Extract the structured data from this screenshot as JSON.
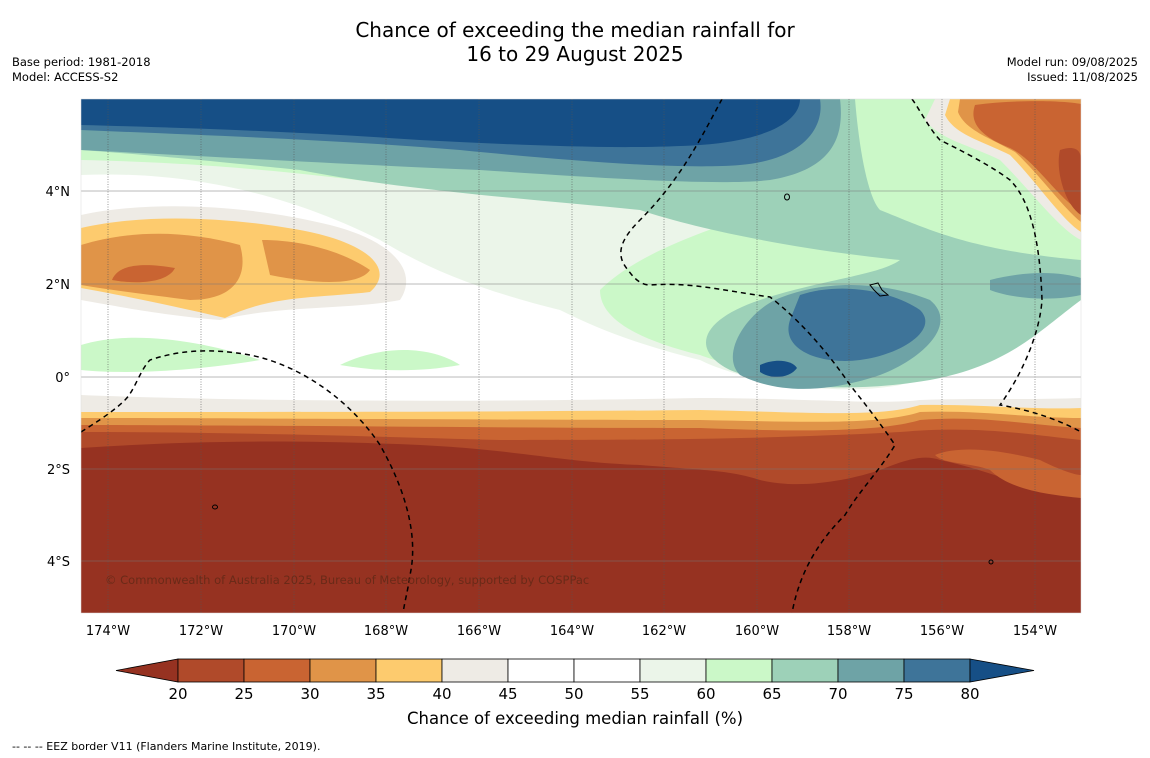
{
  "title_line1": "Chance of exceeding the median rainfall for",
  "title_line2": "16 to 29 August 2025",
  "base_period": "Base period: 1981-2018",
  "model": "Model: ACCESS-S2",
  "model_run": "Model run: 09/08/2025",
  "issued": "Issued: 11/08/2025",
  "copyright": "© Commonwealth of Australia 2025, Bureau of Meteorology, supported by COSPPac",
  "lat_labels": [
    "4°N",
    "2°N",
    "0°",
    "2°S",
    "4°S"
  ],
  "lon_labels": [
    "174°W",
    "172°W",
    "170°W",
    "168°W",
    "166°W",
    "164°W",
    "162°W",
    "160°W",
    "158°W",
    "156°W",
    "154°W"
  ],
  "colorbar": {
    "title": "Chance of exceeding median rainfall (%)",
    "ticks": [
      "20",
      "25",
      "30",
      "35",
      "40",
      "45",
      "50",
      "55",
      "60",
      "65",
      "70",
      "75",
      "80"
    ],
    "colors": [
      "#963221",
      "#b04a2a",
      "#c96432",
      "#e09448",
      "#fdcb6e",
      "#eeebe5",
      "#ffffff",
      "#ffffff",
      "#ebf5e9",
      "#cbf8c8",
      "#9dd1b8",
      "#6ea3a6",
      "#3e7499",
      "#164f86"
    ]
  },
  "footnote": "--  --  -- EEZ border V11 (Flanders Marine Institute, 2019)."
}
